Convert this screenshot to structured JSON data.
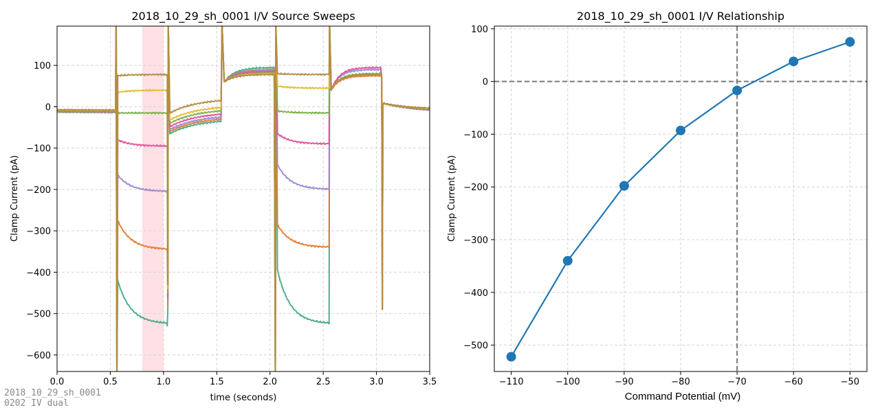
{
  "chart_data": [
    {
      "type": "line",
      "title": "2018_10_29_sh_0001 I/V Source Sweeps",
      "xlabel": "time (seconds)",
      "ylabel": "Clamp Current (pA)",
      "xlim": [
        0,
        3.5
      ],
      "ylim": [
        -640,
        195
      ],
      "xticks": [
        0.0,
        0.5,
        1.0,
        1.5,
        2.0,
        2.5,
        3.0,
        3.5
      ],
      "xtick_labels": [
        "0.0",
        "0.5",
        "1.0",
        "1.5",
        "2.0",
        "2.5",
        "3.0",
        "3.5"
      ],
      "yticks": [
        -600,
        -500,
        -400,
        -300,
        -200,
        -100,
        0,
        100
      ],
      "ytick_labels": [
        "−600",
        "−500",
        "−400",
        "−300",
        "−200",
        "−100",
        "0",
        "100"
      ],
      "grid": true,
      "highlight_region": {
        "x": [
          0.8,
          1.0
        ],
        "color": "#ffe0e4"
      },
      "series": [
        {
          "color": "#44aa88",
          "baseline": -15,
          "step1": -525,
          "step1_spike": -420,
          "tail1": -45,
          "step2": 95,
          "step3": -525,
          "step3_spike": -395,
          "tail3": 80
        },
        {
          "color": "#e07b30",
          "baseline": -14,
          "step1": -345,
          "step1_spike": -275,
          "tail1": -40,
          "step2": 90,
          "step3": -340,
          "step3_spike": -285,
          "tail3": 75
        },
        {
          "color": "#9988cc",
          "baseline": -13,
          "step1": -205,
          "step1_spike": -165,
          "tail1": -35,
          "step2": 88,
          "step3": -200,
          "step3_spike": -140,
          "tail3": 90
        },
        {
          "color": "#e0509a",
          "baseline": -12,
          "step1": -95,
          "step1_spike": -80,
          "tail1": -28,
          "step2": 85,
          "step3": -90,
          "step3_spike": -65,
          "tail3": 95
        },
        {
          "color": "#77b045",
          "baseline": -11,
          "step1": -15,
          "step1_spike": -15,
          "tail1": -20,
          "step2": 82,
          "step3": -15,
          "step3_spike": -10,
          "tail3": 80
        },
        {
          "color": "#e8bb33",
          "baseline": -10,
          "step1": 40,
          "step1_spike": 35,
          "tail1": -12,
          "step2": 80,
          "step3": 45,
          "step3_spike": 50,
          "tail3": 78
        },
        {
          "color": "#b08a45",
          "baseline": -9,
          "step1": 78,
          "step1_spike": 75,
          "tail1": 5,
          "step2": 78,
          "step3": 78,
          "step3_spike": 80,
          "tail3": 78
        }
      ]
    },
    {
      "type": "line",
      "title": "2018_10_29_sh_0001 I/V Relationship",
      "xlabel": "Command Potential (mV)",
      "ylabel": "Clamp Current (pA)",
      "xlim": [
        -113,
        -47
      ],
      "ylim": [
        -550,
        105
      ],
      "xticks": [
        -110,
        -100,
        -90,
        -80,
        -70,
        -60,
        -50
      ],
      "xtick_labels": [
        "−110",
        "−100",
        "−90",
        "−80",
        "−70",
        "−60",
        "−50"
      ],
      "yticks": [
        -500,
        -400,
        -300,
        -200,
        -100,
        0,
        100
      ],
      "ytick_labels": [
        "−500",
        "−400",
        "−300",
        "−200",
        "−100",
        "0",
        "100"
      ],
      "grid": true,
      "reference_lines": {
        "x": -70,
        "y": 0
      },
      "x": [
        -110,
        -100,
        -90,
        -80,
        -70,
        -60,
        -50
      ],
      "y": [
        -522,
        -340,
        -198,
        -93,
        -17,
        38,
        75
      ],
      "color": "#1f77b4"
    }
  ],
  "stamp": {
    "line1": "2018_10_29_sh_0001",
    "line2": "0202 IV dual"
  }
}
